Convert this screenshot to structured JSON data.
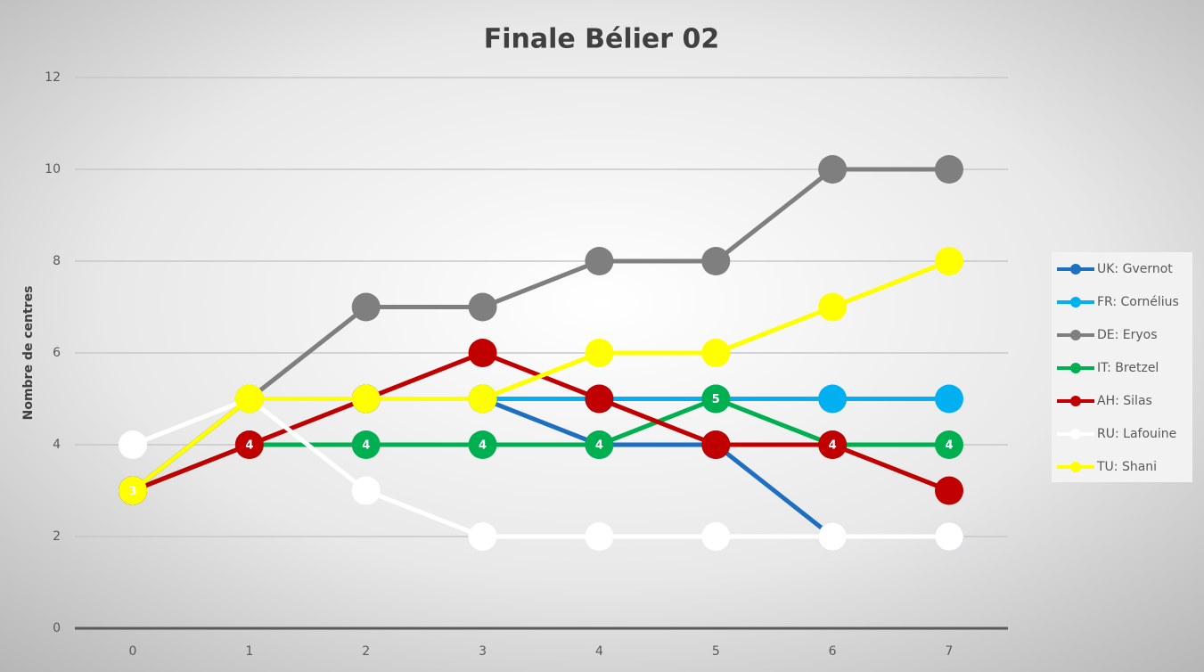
{
  "chart_data": {
    "type": "line",
    "title": "Finale Bélier 02",
    "y_label": "Nombre de centres",
    "categories": [
      0,
      1,
      2,
      3,
      4,
      5,
      6,
      7
    ],
    "ylim": [
      0,
      12
    ],
    "yticks": [
      0,
      2,
      4,
      6,
      8,
      10,
      12
    ],
    "grid": true,
    "legend": "right",
    "series": [
      {
        "name": "UK: Gvernot",
        "color": "#1f6fc1",
        "values": [
          3,
          5,
          5,
          5,
          4,
          4,
          2,
          2
        ]
      },
      {
        "name": "FR: Cornélius",
        "color": "#00b0f0",
        "values": [
          3,
          5,
          5,
          5,
          5,
          5,
          5,
          5
        ]
      },
      {
        "name": "DE: Eryos",
        "color": "#7f7f7f",
        "values": [
          3,
          5,
          7,
          7,
          8,
          8,
          10,
          10
        ]
      },
      {
        "name": "IT: Bretzel",
        "color": "#00b050",
        "values": [
          3,
          4,
          4,
          4,
          4,
          5,
          4,
          4
        ],
        "value_labels": [
          null,
          null,
          "4",
          "4",
          "4",
          "5",
          null,
          "4"
        ]
      },
      {
        "name": "AH: Silas",
        "color": "#c00000",
        "values": [
          3,
          4,
          5,
          6,
          5,
          4,
          4,
          3
        ],
        "value_labels": [
          null,
          "4",
          null,
          null,
          null,
          null,
          "4",
          null
        ]
      },
      {
        "name": "RU: Lafouine",
        "color": "#ffffff",
        "values": [
          4,
          5,
          3,
          2,
          2,
          2,
          2,
          2
        ]
      },
      {
        "name": "TU: Shani",
        "color": "#ffff00",
        "values": [
          3,
          5,
          5,
          5,
          6,
          6,
          7,
          8
        ],
        "value_labels": [
          "3",
          null,
          null,
          null,
          null,
          null,
          null,
          null
        ]
      }
    ]
  }
}
